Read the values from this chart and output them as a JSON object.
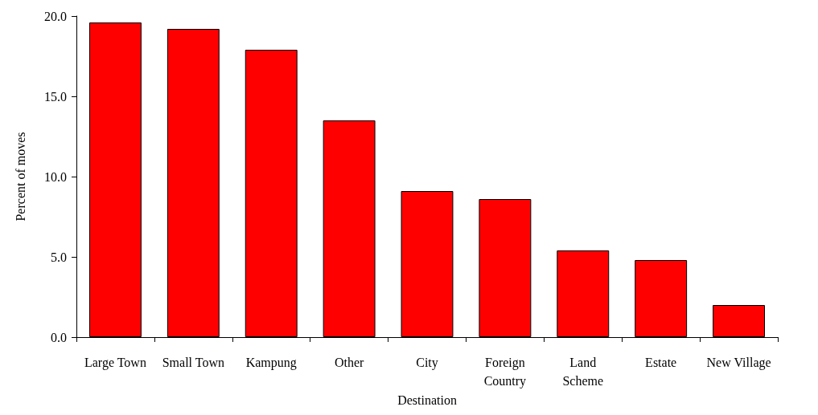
{
  "chart_data": {
    "type": "bar",
    "xlabel": "Destination",
    "ylabel": "Percent of moves",
    "categories": [
      "Large Town",
      "Small Town",
      "Kampung",
      "Other",
      "City",
      "Foreign\nCountry",
      "Land\nScheme",
      "Estate",
      "New Village"
    ],
    "values": [
      19.6,
      19.2,
      17.9,
      13.5,
      9.1,
      8.6,
      5.4,
      4.8,
      2.0
    ],
    "color": "#ff0000",
    "ylim": [
      0,
      20
    ],
    "yticks": [
      {
        "value": 0,
        "label": "0.0"
      },
      {
        "value": 5,
        "label": "5.0"
      },
      {
        "value": 10,
        "label": "10.0"
      },
      {
        "value": 15,
        "label": "15.0"
      },
      {
        "value": 20,
        "label": "20.0"
      }
    ],
    "grid": false
  }
}
